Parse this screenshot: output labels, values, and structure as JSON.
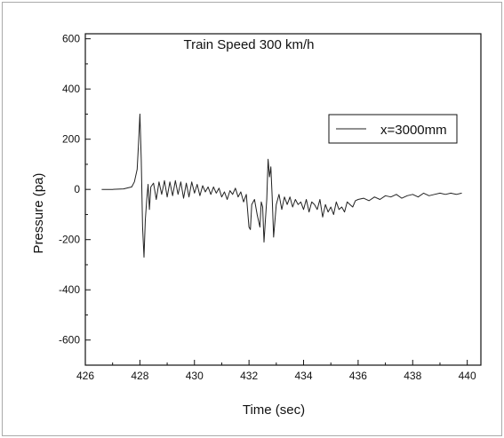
{
  "chart_data": {
    "type": "line",
    "title": "Train Speed 300 km/h",
    "xlabel": "Time (sec)",
    "ylabel": "Pressure (pa)",
    "xlim": [
      426,
      440.5
    ],
    "ylim": [
      -700,
      620
    ],
    "xticks": [
      426,
      428,
      430,
      432,
      434,
      436,
      438,
      440
    ],
    "yticks": [
      600,
      400,
      200,
      0,
      -200,
      -400,
      -600
    ],
    "grid": false,
    "legend_position": "top-right",
    "series": [
      {
        "name": "x=3000mm",
        "color": "#222222",
        "x": [
          426.6,
          427.0,
          427.4,
          427.7,
          427.8,
          427.9,
          427.95,
          428.0,
          428.05,
          428.1,
          428.15,
          428.2,
          428.25,
          428.3,
          428.35,
          428.4,
          428.5,
          428.6,
          428.7,
          428.8,
          428.9,
          429.0,
          429.1,
          429.2,
          429.3,
          429.4,
          429.5,
          429.6,
          429.7,
          429.8,
          429.9,
          430.0,
          430.1,
          430.2,
          430.3,
          430.4,
          430.5,
          430.6,
          430.7,
          430.8,
          430.9,
          431.0,
          431.1,
          431.2,
          431.3,
          431.4,
          431.5,
          431.6,
          431.7,
          431.8,
          431.9,
          432.0,
          432.05,
          432.1,
          432.2,
          432.3,
          432.4,
          432.45,
          432.5,
          432.55,
          432.6,
          432.65,
          432.7,
          432.75,
          432.8,
          432.85,
          432.9,
          433.0,
          433.1,
          433.2,
          433.3,
          433.4,
          433.5,
          433.6,
          433.7,
          433.8,
          433.9,
          434.0,
          434.1,
          434.2,
          434.3,
          434.4,
          434.5,
          434.6,
          434.7,
          434.8,
          434.9,
          435.0,
          435.1,
          435.2,
          435.3,
          435.4,
          435.5,
          435.6,
          435.7,
          435.8,
          435.9,
          436.0,
          436.2,
          436.4,
          436.6,
          436.8,
          437.0,
          437.2,
          437.4,
          437.6,
          437.8,
          438.0,
          438.2,
          438.4,
          438.6,
          438.8,
          439.0,
          439.2,
          439.4,
          439.6,
          439.8
        ],
        "y": [
          0,
          0,
          2,
          10,
          30,
          80,
          180,
          300,
          120,
          -150,
          -270,
          -120,
          -40,
          20,
          -80,
          10,
          25,
          -40,
          30,
          -20,
          35,
          -30,
          30,
          -25,
          35,
          -20,
          30,
          -35,
          25,
          -30,
          30,
          -15,
          20,
          -25,
          15,
          -10,
          10,
          -20,
          10,
          -15,
          5,
          -30,
          -10,
          -40,
          -5,
          -20,
          5,
          -30,
          -10,
          -50,
          -20,
          -150,
          -160,
          -60,
          -40,
          -100,
          -150,
          -50,
          -70,
          -210,
          -120,
          -40,
          120,
          50,
          90,
          -30,
          -190,
          -60,
          -20,
          -80,
          -30,
          -60,
          -30,
          -70,
          -40,
          -60,
          -50,
          -80,
          -40,
          -90,
          -50,
          -60,
          -80,
          -40,
          -110,
          -60,
          -90,
          -70,
          -100,
          -50,
          -80,
          -70,
          -90,
          -50,
          -60,
          -70,
          -45,
          -40,
          -35,
          -45,
          -30,
          -40,
          -25,
          -30,
          -20,
          -35,
          -25,
          -20,
          -30,
          -15,
          -25,
          -20,
          -15,
          -20,
          -15,
          -20,
          -15
        ]
      }
    ]
  }
}
